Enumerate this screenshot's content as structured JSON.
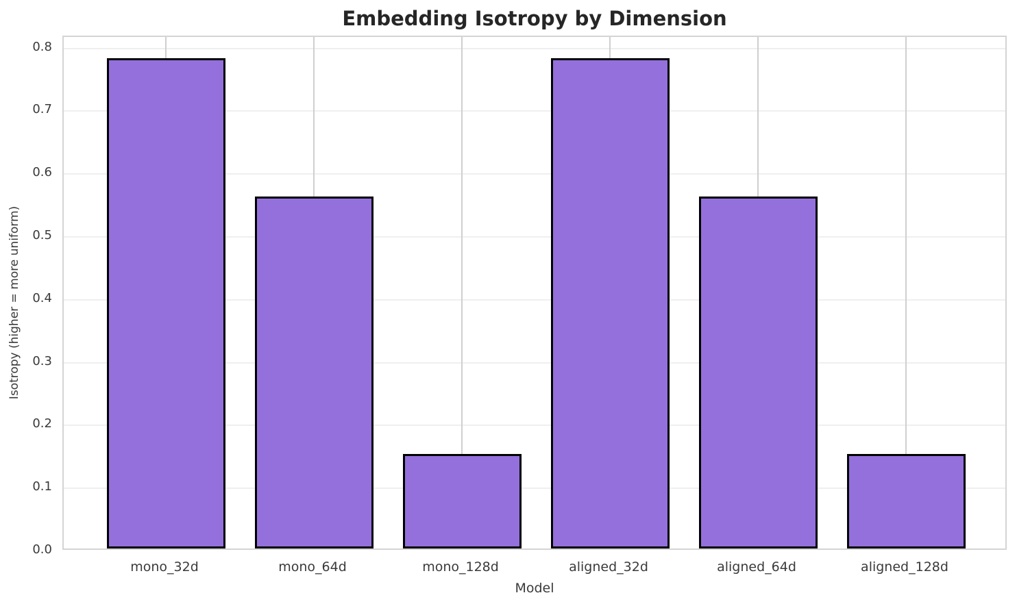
{
  "chart_data": {
    "type": "bar",
    "title": "Embedding Isotropy by Dimension",
    "xlabel": "Model",
    "ylabel": "Isotropy (higher = more uniform)",
    "categories": [
      "mono_32d",
      "mono_64d",
      "mono_128d",
      "aligned_32d",
      "aligned_64d",
      "aligned_128d"
    ],
    "values": [
      0.78,
      0.56,
      0.15,
      0.78,
      0.56,
      0.15
    ],
    "yticks": [
      0.0,
      0.1,
      0.2,
      0.3,
      0.4,
      0.5,
      0.6,
      0.7,
      0.8
    ],
    "ylim": [
      0.0,
      0.818
    ],
    "grid": "on",
    "legend": "none",
    "bar_width_frac": 0.8,
    "x_margin_units": 0.69,
    "colors": {
      "bar_fill": "#9370DB",
      "bar_edge": "#000000",
      "grid_horizontal": "#efefef",
      "grid_vertical": "#cfcfcf",
      "spine": "#d4d4d4",
      "tick_text": "#3a3a3a",
      "title_text": "#262626",
      "background": "#ffffff"
    }
  }
}
